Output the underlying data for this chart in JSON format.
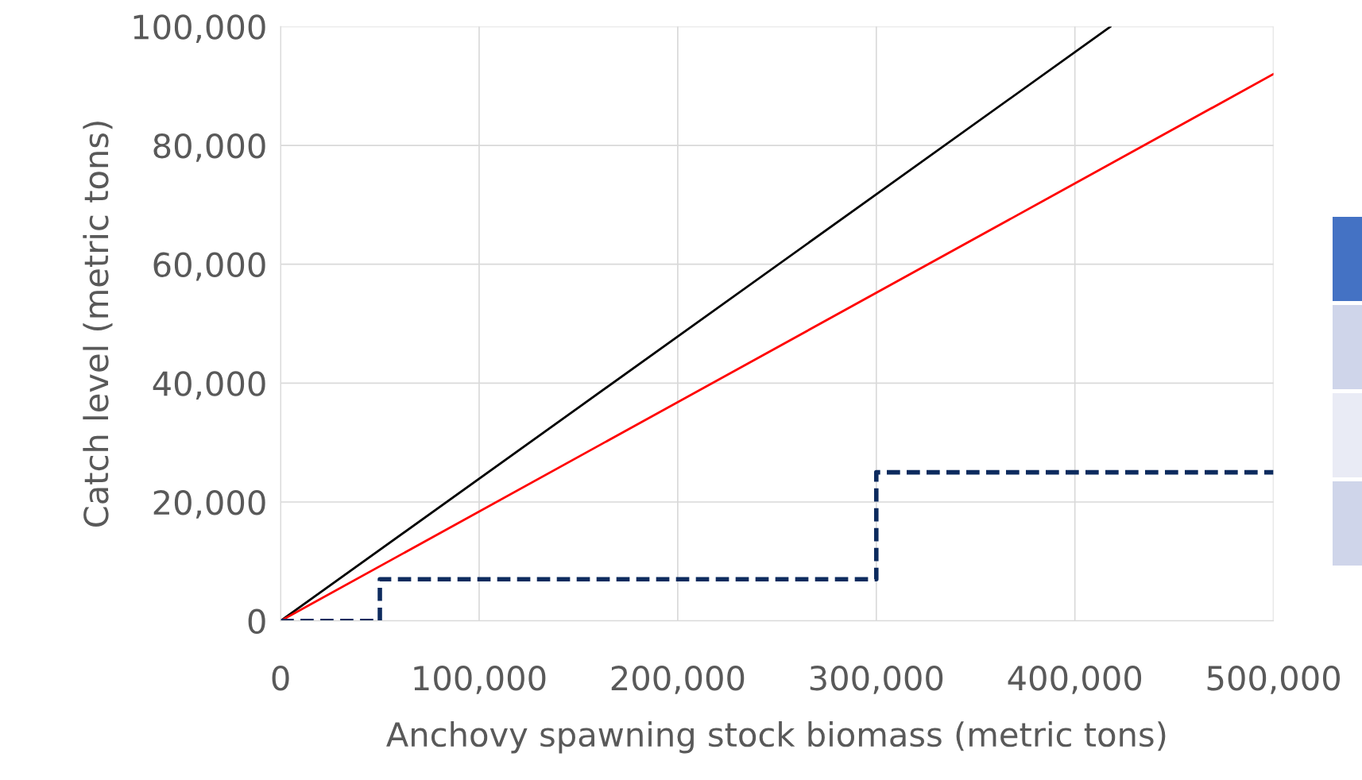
{
  "chart_data": {
    "type": "line",
    "xlabel": "Anchovy spawning stock biomass (metric tons)",
    "ylabel": "Catch level (metric tons)",
    "series": [
      {
        "color": "#000000",
        "x": [
          0,
          418000
        ],
        "values": [
          0,
          100000
        ]
      },
      {
        "color": "#ff0000",
        "x": [
          0,
          500000
        ],
        "values": [
          0,
          92000
        ]
      },
      {
        "type": "step",
        "color": "#0d2b5e",
        "line_style": "dashed",
        "x": [
          0,
          50000,
          300000,
          500000
        ],
        "values": [
          0,
          7000,
          25000,
          25000
        ]
      }
    ],
    "xlim": [
      0,
      500000
    ],
    "xticks": [
      {
        "value": 0,
        "label": "0"
      },
      {
        "value": 100000,
        "label": "100,000"
      },
      {
        "value": 200000,
        "label": "200,000"
      },
      {
        "value": 300000,
        "label": "300,000"
      },
      {
        "value": 400000,
        "label": "400,000"
      },
      {
        "value": 500000,
        "label": "500,000"
      }
    ],
    "ylim": [
      0,
      100000
    ],
    "yticks": [
      {
        "value": 0,
        "label": "0"
      },
      {
        "value": 20000,
        "label": "20,000"
      },
      {
        "value": 40000,
        "label": "40,000"
      },
      {
        "value": 60000,
        "label": "60,000"
      },
      {
        "value": 80000,
        "label": "80,000"
      },
      {
        "value": 100000,
        "label": "100,000"
      }
    ],
    "grid": true,
    "legend": false
  }
}
